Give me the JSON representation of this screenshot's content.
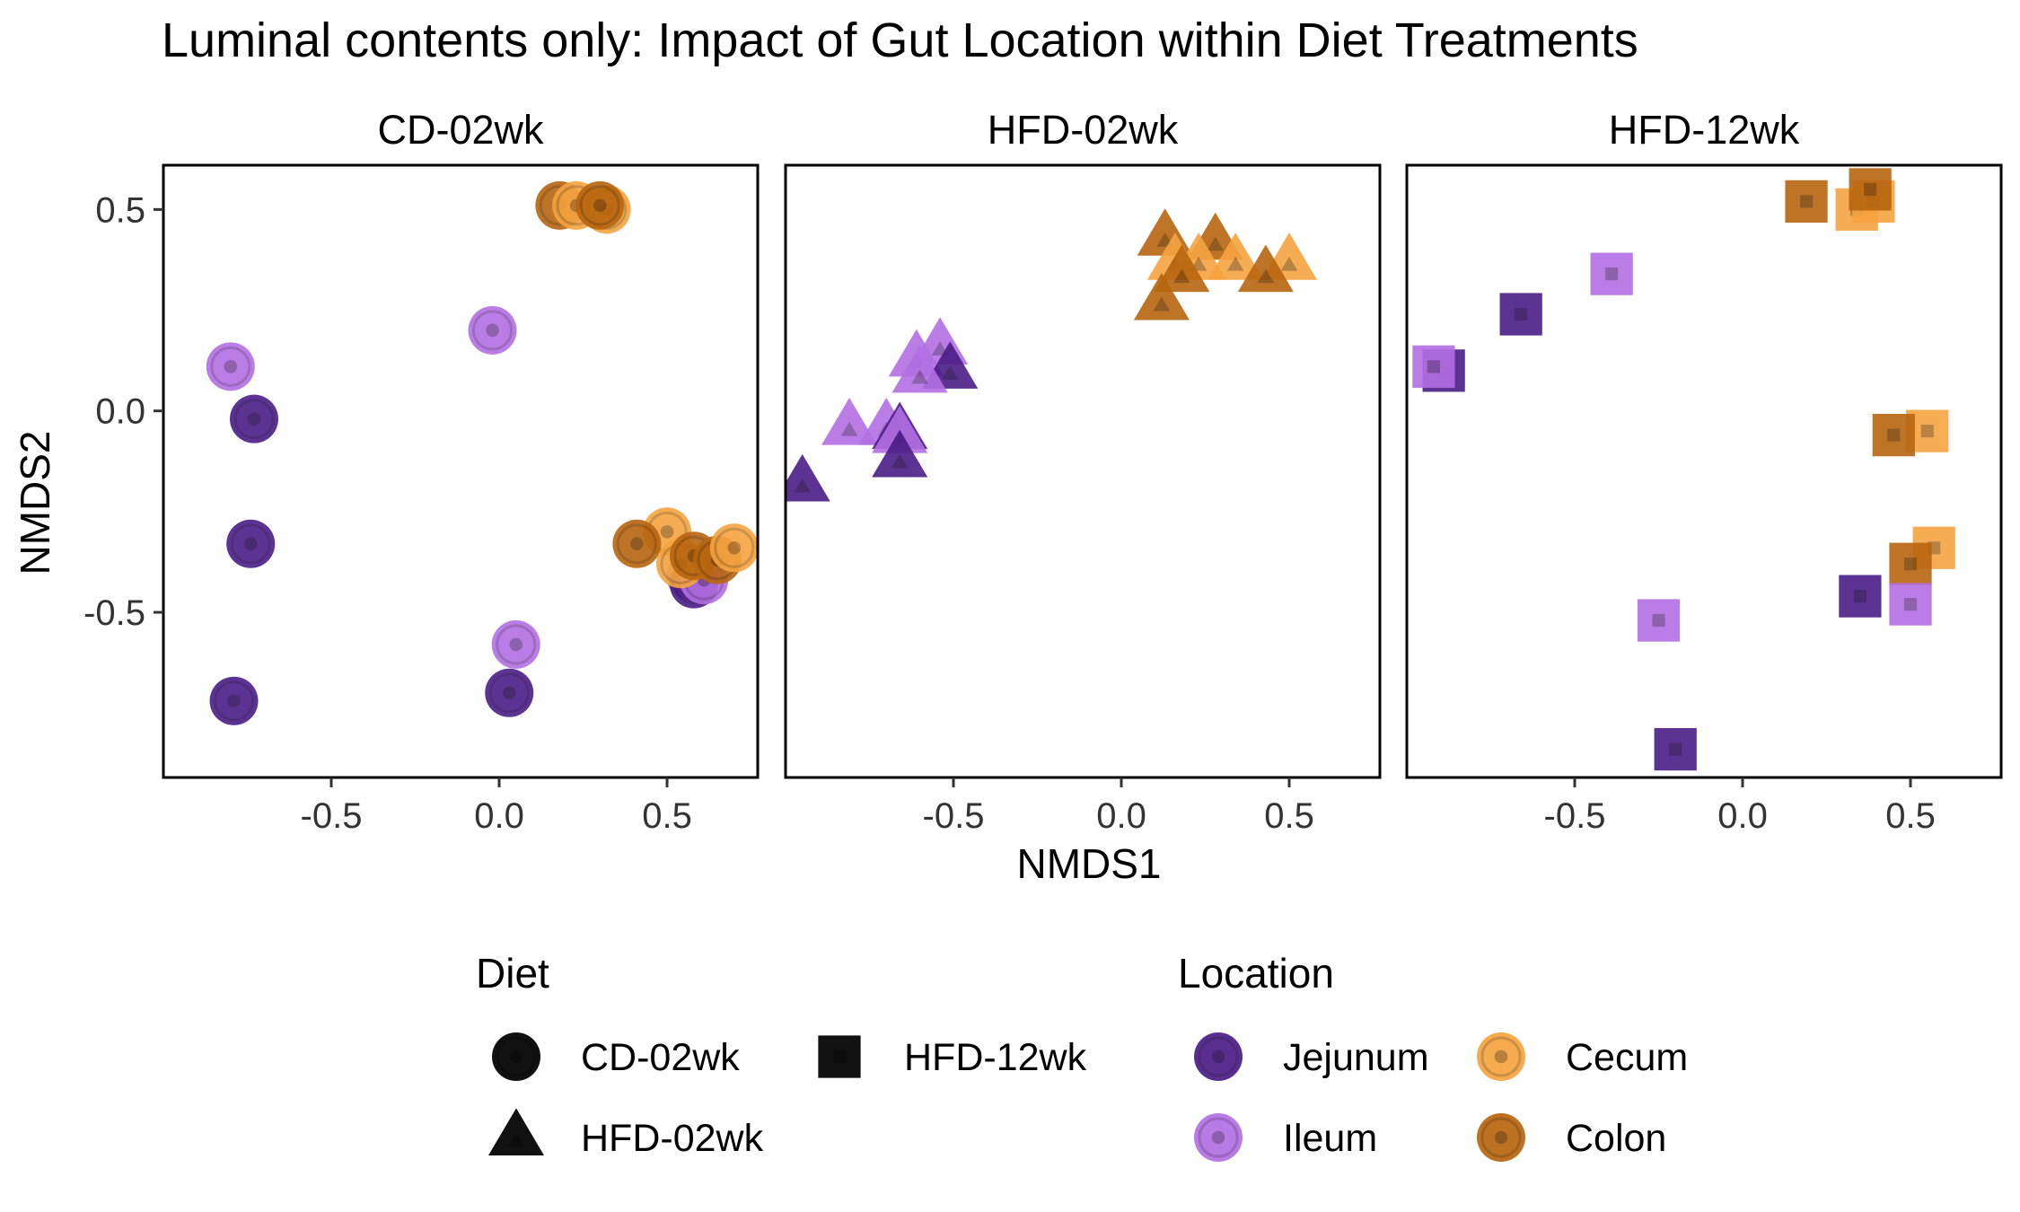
{
  "chart_data": {
    "type": "scatter",
    "title": "Luminal contents only: Impact of Gut Location within Diet Treatments",
    "xlabel": "NMDS1",
    "ylabel": "NMDS2",
    "xlim": [
      -1.0,
      0.77
    ],
    "ylim": [
      -0.91,
      0.61
    ],
    "x_ticks": [
      -0.5,
      0.0,
      0.5
    ],
    "x_tick_labels": [
      "-0.5",
      "0.0",
      "0.5"
    ],
    "y_ticks": [
      -0.5,
      0.0,
      0.5
    ],
    "y_tick_labels": [
      "-0.5",
      "0.0",
      "0.5"
    ],
    "grid": false,
    "colors": {
      "Jejunum": "#4b1d87",
      "Ileum": "#b36fe3",
      "Cecum": "#f5a440",
      "Colon": "#b8660f"
    },
    "shapes": {
      "CD-02wk": "circle",
      "HFD-02wk": "triangle",
      "HFD-12wk": "square"
    },
    "legend": {
      "position": "bottom",
      "diet_title": "Diet",
      "diet_items": [
        "CD-02wk",
        "HFD-12wk",
        "HFD-02wk"
      ],
      "location_title": "Location",
      "location_items": [
        "Jejunum",
        "Cecum",
        "Ileum",
        "Colon"
      ]
    },
    "facets": [
      {
        "name": "CD-02wk",
        "shape": "circle",
        "points": [
          {
            "location": "Colon",
            "x": 0.18,
            "y": 0.51
          },
          {
            "location": "Cecum",
            "x": 0.23,
            "y": 0.51
          },
          {
            "location": "Cecum",
            "x": 0.32,
            "y": 0.5
          },
          {
            "location": "Colon",
            "x": 0.3,
            "y": 0.51
          },
          {
            "location": "Ileum",
            "x": -0.02,
            "y": 0.2
          },
          {
            "location": "Ileum",
            "x": -0.8,
            "y": 0.11
          },
          {
            "location": "Jejunum",
            "x": -0.73,
            "y": -0.02
          },
          {
            "location": "Jejunum",
            "x": -0.74,
            "y": -0.33
          },
          {
            "location": "Jejunum",
            "x": -0.79,
            "y": -0.72
          },
          {
            "location": "Jejunum",
            "x": 0.03,
            "y": -0.7
          },
          {
            "location": "Ileum",
            "x": 0.05,
            "y": -0.58
          },
          {
            "location": "Ileum",
            "x": 0.57,
            "y": -0.41
          },
          {
            "location": "Jejunum",
            "x": 0.58,
            "y": -0.43
          },
          {
            "location": "Ileum",
            "x": 0.61,
            "y": -0.42
          },
          {
            "location": "Cecum",
            "x": 0.5,
            "y": -0.3
          },
          {
            "location": "Colon",
            "x": 0.41,
            "y": -0.33
          },
          {
            "location": "Cecum",
            "x": 0.54,
            "y": -0.38
          },
          {
            "location": "Colon",
            "x": 0.58,
            "y": -0.36
          },
          {
            "location": "Colon",
            "x": 0.65,
            "y": -0.37
          },
          {
            "location": "Cecum",
            "x": 0.7,
            "y": -0.34
          }
        ]
      },
      {
        "name": "HFD-02wk",
        "shape": "triangle",
        "points": [
          {
            "location": "Colon",
            "x": 0.13,
            "y": 0.43
          },
          {
            "location": "Colon",
            "x": 0.28,
            "y": 0.42
          },
          {
            "location": "Cecum",
            "x": 0.16,
            "y": 0.37
          },
          {
            "location": "Cecum",
            "x": 0.23,
            "y": 0.37
          },
          {
            "location": "Cecum",
            "x": 0.5,
            "y": 0.37
          },
          {
            "location": "Cecum",
            "x": 0.34,
            "y": 0.37
          },
          {
            "location": "Colon",
            "x": 0.18,
            "y": 0.34
          },
          {
            "location": "Colon",
            "x": 0.43,
            "y": 0.34
          },
          {
            "location": "Colon",
            "x": 0.12,
            "y": 0.27
          },
          {
            "location": "Ileum",
            "x": -0.54,
            "y": 0.16
          },
          {
            "location": "Ileum",
            "x": -0.61,
            "y": 0.13
          },
          {
            "location": "Jejunum",
            "x": -0.51,
            "y": 0.1
          },
          {
            "location": "Ileum",
            "x": -0.6,
            "y": 0.09
          },
          {
            "location": "Ileum",
            "x": -0.81,
            "y": -0.04
          },
          {
            "location": "Ileum",
            "x": -0.7,
            "y": -0.04
          },
          {
            "location": "Jejunum",
            "x": -0.66,
            "y": -0.05
          },
          {
            "location": "Ileum",
            "x": -0.66,
            "y": -0.06
          },
          {
            "location": "Jejunum",
            "x": -0.66,
            "y": -0.12
          },
          {
            "location": "Jejunum",
            "x": -0.95,
            "y": -0.18
          }
        ]
      },
      {
        "name": "HFD-12wk",
        "shape": "square",
        "points": [
          {
            "location": "Colon",
            "x": 0.19,
            "y": 0.52
          },
          {
            "location": "Cecum",
            "x": 0.34,
            "y": 0.5
          },
          {
            "location": "Cecum",
            "x": 0.39,
            "y": 0.52
          },
          {
            "location": "Colon",
            "x": 0.38,
            "y": 0.55
          },
          {
            "location": "Ileum",
            "x": -0.39,
            "y": 0.34
          },
          {
            "location": "Jejunum",
            "x": -0.66,
            "y": 0.24
          },
          {
            "location": "Jejunum",
            "x": -0.89,
            "y": 0.1
          },
          {
            "location": "Ileum",
            "x": -0.92,
            "y": 0.11
          },
          {
            "location": "Cecum",
            "x": 0.55,
            "y": -0.05
          },
          {
            "location": "Colon",
            "x": 0.45,
            "y": -0.06
          },
          {
            "location": "Cecum",
            "x": 0.57,
            "y": -0.34
          },
          {
            "location": "Colon",
            "x": 0.5,
            "y": -0.38
          },
          {
            "location": "Jejunum",
            "x": 0.35,
            "y": -0.46
          },
          {
            "location": "Ileum",
            "x": 0.5,
            "y": -0.48
          },
          {
            "location": "Ileum",
            "x": -0.25,
            "y": -0.52
          },
          {
            "location": "Jejunum",
            "x": -0.2,
            "y": -0.84
          }
        ]
      }
    ]
  }
}
